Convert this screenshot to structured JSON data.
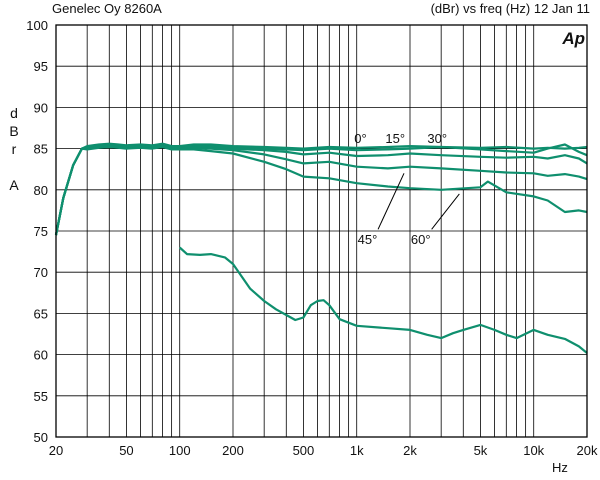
{
  "header": {
    "left": "Genelec Oy 8260A",
    "right": "(dBr) vs freq (Hz) 12 Jan 11"
  },
  "logo_text": "Ap",
  "colors": {
    "trace": "#0f8f6e",
    "grid": "#000000"
  },
  "chart_data": {
    "type": "line",
    "xscale": "log",
    "xlim": [
      20,
      20000
    ],
    "ylim": [
      50,
      100
    ],
    "xlabel": "Hz",
    "ylabel": "d\nB\nr\n\nA",
    "grid": true,
    "x_ticks": [
      20,
      50,
      100,
      200,
      500,
      1000,
      2000,
      5000,
      10000,
      20000
    ],
    "x_tick_labels": [
      "20",
      "50",
      "100",
      "200",
      "500",
      "1k",
      "2k",
      "5k",
      "10k",
      "20k"
    ],
    "y_ticks": [
      50,
      55,
      60,
      65,
      70,
      75,
      80,
      85,
      90,
      95,
      100
    ],
    "y_tick_labels": [
      "50",
      "55",
      "60",
      "65",
      "70",
      "75",
      "80",
      "85",
      "90",
      "95",
      "100"
    ],
    "annotations": [
      {
        "text": "0°",
        "x": 1050,
        "y": 85.7
      },
      {
        "text": "15°",
        "x": 1650,
        "y": 85.7
      },
      {
        "text": "30°",
        "x": 2850,
        "y": 85.7
      },
      {
        "text": "45°",
        "x": 1150,
        "y": 73.4
      },
      {
        "text": "60°",
        "x": 2300,
        "y": 73.4
      }
    ],
    "leaders": [
      {
        "from": [
          1320,
          75.2
        ],
        "to": [
          1850,
          82.0
        ]
      },
      {
        "from": [
          2650,
          75.2
        ],
        "to": [
          3800,
          79.5
        ]
      }
    ],
    "series": [
      {
        "x": [
          20,
          22,
          25,
          28,
          30,
          35,
          40,
          45,
          50,
          60,
          70,
          80,
          90,
          100,
          120,
          150,
          200,
          300,
          400,
          500,
          700,
          1000,
          1500,
          2000,
          3000,
          5000,
          7000,
          10000,
          12000,
          15000,
          18000,
          20000
        ],
        "y": [
          74.5,
          79,
          83,
          85,
          85.3,
          85.5,
          85.6,
          85.5,
          85.4,
          85.5,
          85.4,
          85.6,
          85.3,
          85.3,
          85.5,
          85.5,
          85.3,
          85.2,
          85.1,
          85.0,
          85.2,
          85.1,
          85.2,
          85.3,
          85.2,
          85.1,
          85.2,
          85.0,
          85.1,
          85.0,
          85.1,
          85.2
        ]
      },
      {
        "x": [
          20,
          22,
          25,
          28,
          30,
          35,
          40,
          45,
          50,
          60,
          70,
          80,
          90,
          100,
          120,
          150,
          200,
          300,
          400,
          500,
          700,
          1000,
          1500,
          2000,
          3000,
          5000,
          7000,
          10000,
          12000,
          15000,
          18000,
          20000
        ],
        "y": [
          74.5,
          79,
          83,
          85,
          85.2,
          85.4,
          85.5,
          85.4,
          85.3,
          85.4,
          85.3,
          85.5,
          85.2,
          85.2,
          85.4,
          85.4,
          85.2,
          85.0,
          84.9,
          84.8,
          85.0,
          84.8,
          84.9,
          85.0,
          85.2,
          84.9,
          84.7,
          84.5,
          85.0,
          85.5,
          84.6,
          84.2
        ]
      },
      {
        "x": [
          20,
          22,
          25,
          28,
          30,
          35,
          40,
          45,
          50,
          60,
          70,
          80,
          90,
          100,
          120,
          150,
          200,
          300,
          400,
          500,
          700,
          1000,
          1500,
          2000,
          3000,
          5000,
          7000,
          10000,
          12000,
          15000,
          18000,
          20000
        ],
        "y": [
          74.5,
          79,
          83,
          85,
          85.1,
          85.3,
          85.4,
          85.3,
          85.2,
          85.3,
          85.2,
          85.4,
          85.1,
          85.1,
          85.3,
          85.2,
          85.0,
          84.8,
          84.6,
          84.3,
          84.5,
          84.1,
          84.2,
          84.4,
          84.2,
          84.0,
          83.9,
          84.0,
          83.8,
          84.2,
          83.8,
          83.2
        ]
      },
      {
        "x": [
          20,
          22,
          25,
          28,
          30,
          35,
          40,
          45,
          50,
          60,
          70,
          80,
          90,
          100,
          120,
          150,
          200,
          300,
          400,
          500,
          700,
          1000,
          1500,
          2000,
          3000,
          5000,
          7000,
          10000,
          12000,
          15000,
          18000,
          20000
        ],
        "y": [
          74.5,
          79,
          83,
          85,
          85.0,
          85.2,
          85.3,
          85.2,
          85.1,
          85.2,
          85.1,
          85.3,
          85.0,
          85.0,
          85.1,
          85.0,
          84.8,
          84.3,
          83.7,
          83.2,
          83.4,
          82.8,
          82.6,
          82.8,
          82.6,
          82.3,
          82.1,
          82.0,
          81.7,
          81.9,
          81.6,
          81.3
        ]
      },
      {
        "x": [
          20,
          22,
          25,
          28,
          30,
          35,
          40,
          45,
          50,
          60,
          70,
          80,
          90,
          100,
          120,
          150,
          200,
          300,
          400,
          500,
          700,
          1000,
          1500,
          2000,
          3000,
          5000,
          5500,
          7000,
          10000,
          12000,
          15000,
          18000,
          20000
        ],
        "y": [
          74.5,
          79,
          83,
          85,
          84.9,
          85.1,
          85.2,
          85.1,
          85.0,
          85.1,
          85.0,
          85.2,
          84.9,
          84.9,
          84.9,
          84.7,
          84.4,
          83.4,
          82.5,
          81.6,
          81.4,
          80.8,
          80.4,
          80.2,
          80.0,
          80.3,
          81.0,
          79.7,
          79.2,
          78.7,
          77.3,
          77.5,
          77.3
        ]
      },
      {
        "x": [
          100,
          110,
          130,
          150,
          180,
          200,
          250,
          300,
          350,
          400,
          450,
          500,
          550,
          600,
          650,
          700,
          800,
          1000,
          1500,
          2000,
          2500,
          3000,
          3500,
          4000,
          5000,
          6000,
          7000,
          8000,
          10000,
          12000,
          15000,
          18000,
          20000
        ],
        "y": [
          73.0,
          72.2,
          72.1,
          72.2,
          71.8,
          71.0,
          68.0,
          66.5,
          65.5,
          64.8,
          64.2,
          64.5,
          66.0,
          66.5,
          66.6,
          66.0,
          64.3,
          63.5,
          63.2,
          63.0,
          62.4,
          62.0,
          62.6,
          63.0,
          63.6,
          63.0,
          62.4,
          62.0,
          63.0,
          62.4,
          61.9,
          61.0,
          60.2
        ]
      }
    ]
  }
}
